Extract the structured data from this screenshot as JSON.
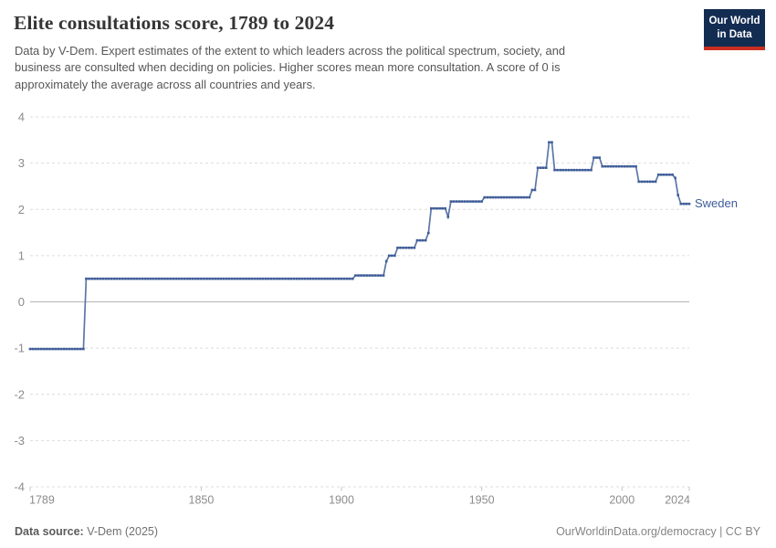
{
  "header": {
    "title": "Elite consultations score, 1789 to 2024",
    "subtitle_lines": [
      "Data by V-Dem. Expert estimates of the extent to which leaders across the political spectrum, society, and",
      "business are consulted when deciding on policies. Higher scores mean more consultation. A score of 0 is",
      "approximately the average across all countries and years."
    ],
    "logo": {
      "line1": "Our World",
      "line2": "in Data",
      "bg_color": "#132c52",
      "stripe_color": "#cb2e21"
    }
  },
  "footer": {
    "source_label": "Data source:",
    "source_value": " V-Dem (2025)",
    "credit": "OurWorldinData.org/democracy | CC BY"
  },
  "chart_data": {
    "type": "line",
    "title": "Elite consultations score, 1789 to 2024",
    "xlabel": "",
    "ylabel": "",
    "x": {
      "min": 1789,
      "max": 2024,
      "ticks": [
        1789,
        1850,
        1900,
        1950,
        2000,
        2024
      ]
    },
    "y": {
      "min": -4,
      "max": 4,
      "ticks": [
        4,
        3,
        2,
        1,
        0,
        -1,
        -2,
        -3,
        -4
      ]
    },
    "layout": {
      "grid": "dashed horizontal",
      "grid_color": "#dcdcdc",
      "zero_line_color": "#b5b5b5",
      "axis_label_color": "#8c8c8c",
      "legend_position": "end-of-line label"
    },
    "series": [
      {
        "name": "Sweden",
        "color": "#3e5c98",
        "line_color": "#5b76a8",
        "segments_start_end_value": [
          [
            1789,
            1808,
            -1.02
          ],
          [
            1809,
            1904,
            0.5
          ],
          [
            1905,
            1915,
            0.57
          ],
          [
            1916,
            1916,
            0.88
          ],
          [
            1917,
            1919,
            1.0
          ],
          [
            1920,
            1926,
            1.17
          ],
          [
            1927,
            1930,
            1.33
          ],
          [
            1931,
            1931,
            1.49
          ],
          [
            1932,
            1937,
            2.02
          ],
          [
            1938,
            1938,
            1.84
          ],
          [
            1939,
            1950,
            2.17
          ],
          [
            1951,
            1967,
            2.26
          ],
          [
            1968,
            1969,
            2.42
          ],
          [
            1970,
            1973,
            2.9
          ],
          [
            1974,
            1975,
            3.45
          ],
          [
            1976,
            1989,
            2.85
          ],
          [
            1990,
            1992,
            3.12
          ],
          [
            1993,
            2005,
            2.93
          ],
          [
            2006,
            2012,
            2.6
          ],
          [
            2013,
            2018,
            2.75
          ],
          [
            2019,
            2019,
            2.68
          ],
          [
            2020,
            2020,
            2.31
          ],
          [
            2021,
            2024,
            2.12
          ]
        ]
      }
    ]
  }
}
